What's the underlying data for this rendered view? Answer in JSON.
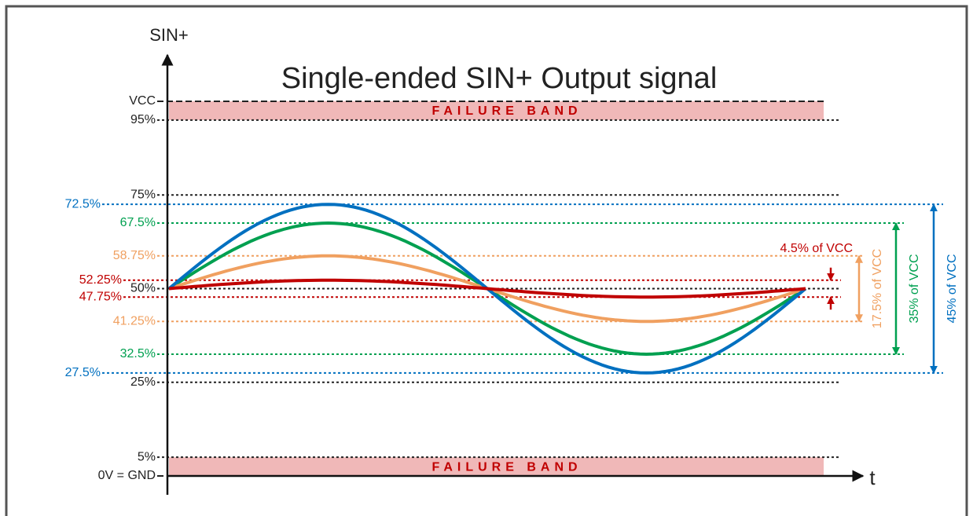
{
  "title": "Single-ended SIN+ Output signal",
  "y_axis_label": "SIN+",
  "x_axis_label": "t",
  "failure_bands": [
    "FAILURE BAND",
    "FAILURE BAND"
  ],
  "levels": [
    {
      "label": "VCC",
      "value": 100
    },
    {
      "label": "95%",
      "value": 95
    },
    {
      "label": "75%",
      "value": 75
    },
    {
      "label": "50%",
      "value": 50
    },
    {
      "label": "25%",
      "value": 25
    },
    {
      "label": "5%",
      "value": 5
    },
    {
      "label": "0V = GND",
      "value": 0
    }
  ],
  "bands": [
    {
      "color": "#0070c0",
      "high": {
        "label": "72.5%",
        "value": 72.5
      },
      "low": {
        "label": "27.5%",
        "value": 27.5
      },
      "span": "45% of VCC"
    },
    {
      "color": "#00a050",
      "high": {
        "label": "67.5%",
        "value": 67.5
      },
      "low": {
        "label": "32.5%",
        "value": 32.5
      },
      "span": "35% of VCC"
    },
    {
      "color": "#f0a060",
      "high": {
        "label": "58.75%",
        "value": 58.75
      },
      "low": {
        "label": "41.25%",
        "value": 41.25
      },
      "span": "17.5% of VCC"
    },
    {
      "color": "#c00000",
      "high": {
        "label": "52.25%",
        "value": 52.25
      },
      "low": {
        "label": "47.75%",
        "value": 47.75
      },
      "span": "4.5% of VCC"
    }
  ]
}
